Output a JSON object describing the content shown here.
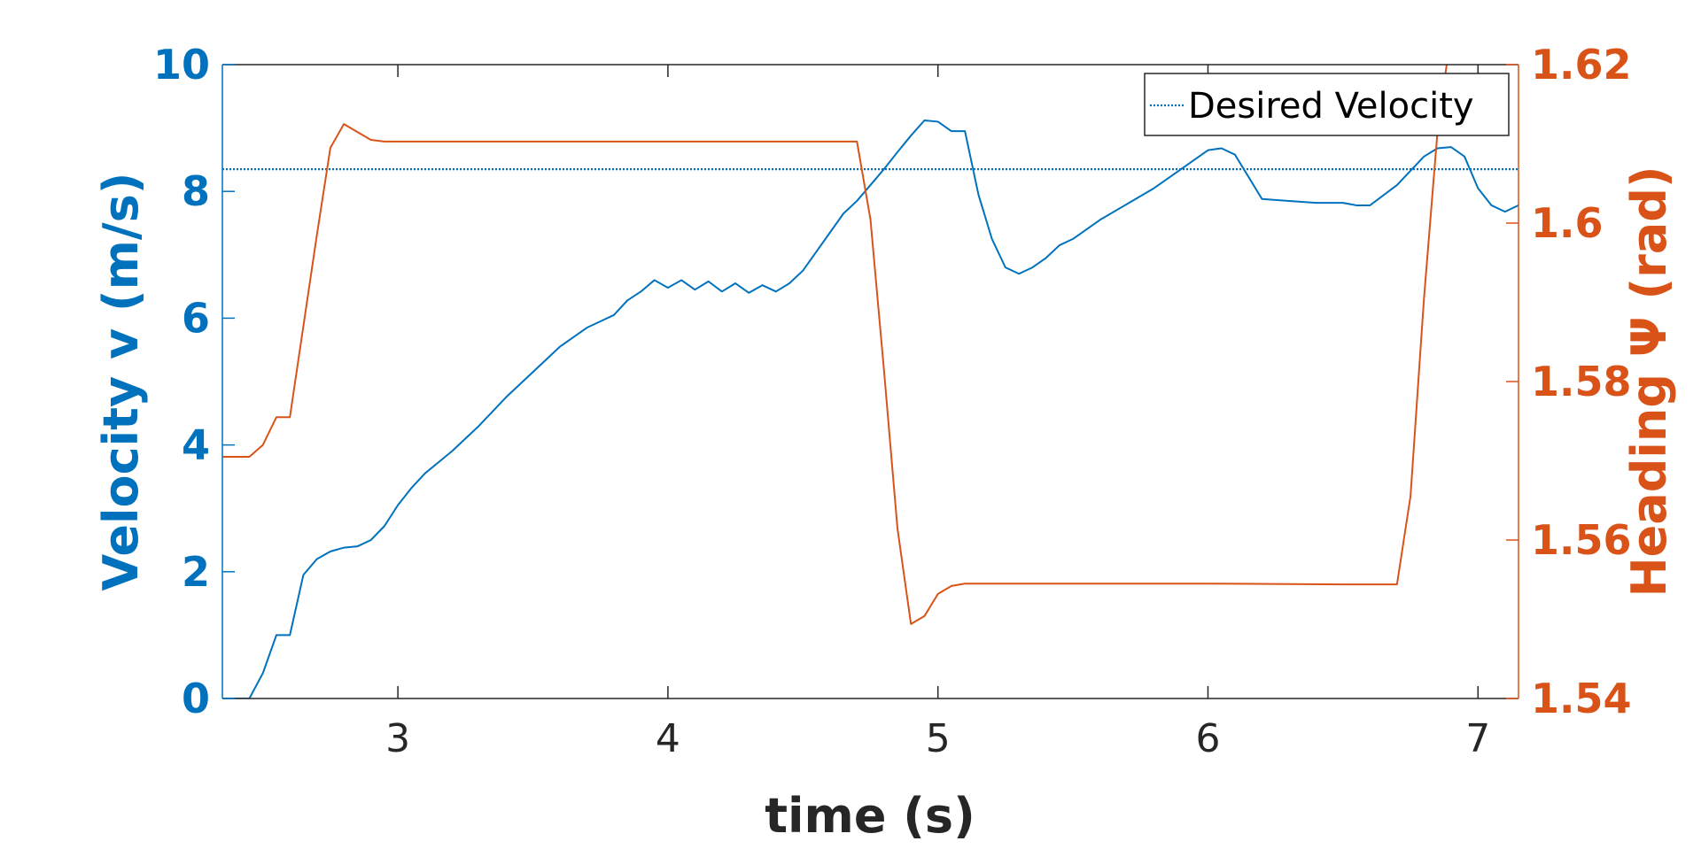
{
  "chart_data": {
    "type": "line",
    "title": "",
    "xlabel": "time (s)",
    "ylabel_left": "Velocity v (m/s)",
    "ylabel_right": "Heading Ψ (rad)",
    "xlim": [
      2.35,
      7.15
    ],
    "ylim_left": [
      0,
      10
    ],
    "ylim_right": [
      1.54,
      1.62
    ],
    "xticks": [
      3,
      4,
      5,
      6,
      7
    ],
    "yticks_left": [
      0,
      2,
      4,
      6,
      8,
      10
    ],
    "yticks_right": [
      1.54,
      1.56,
      1.58,
      1.6,
      1.62
    ],
    "ytick_labels_right": [
      "1.54",
      "1.56",
      "1.58",
      "1.6",
      "1.62"
    ],
    "grid": false,
    "legend_position": "top-right",
    "colors": {
      "velocity": "#0072BD",
      "heading": "#D95319",
      "axis_text": "#262626",
      "axis_line": "#262626"
    },
    "series": [
      {
        "name": "Desired Velocity",
        "axis": "left",
        "style": "dotted",
        "color": "#0072BD",
        "x": [
          2.35,
          7.15
        ],
        "y": [
          8.35,
          8.35
        ]
      },
      {
        "axis": "left",
        "style": "solid",
        "color": "#0072BD",
        "x": [
          2.35,
          2.45,
          2.5,
          2.55,
          2.6,
          2.65,
          2.7,
          2.75,
          2.8,
          2.85,
          2.9,
          2.95,
          3.0,
          3.05,
          3.1,
          3.2,
          3.3,
          3.4,
          3.5,
          3.6,
          3.7,
          3.75,
          3.8,
          3.85,
          3.9,
          3.95,
          4.0,
          4.05,
          4.1,
          4.15,
          4.2,
          4.25,
          4.3,
          4.35,
          4.4,
          4.45,
          4.5,
          4.55,
          4.6,
          4.65,
          4.7,
          4.75,
          4.8,
          4.85,
          4.9,
          4.95,
          5.0,
          5.05,
          5.1,
          5.15,
          5.2,
          5.25,
          5.3,
          5.35,
          5.4,
          5.45,
          5.5,
          5.6,
          5.7,
          5.8,
          5.9,
          6.0,
          6.05,
          6.1,
          6.2,
          6.3,
          6.4,
          6.5,
          6.55,
          6.6,
          6.7,
          6.8,
          6.85,
          6.9,
          6.95,
          7.0,
          7.05,
          7.1,
          7.15
        ],
        "y": [
          0.0,
          0.0,
          0.4,
          1.0,
          1.0,
          1.95,
          2.2,
          2.32,
          2.38,
          2.4,
          2.5,
          2.72,
          3.05,
          3.32,
          3.55,
          3.9,
          4.3,
          4.75,
          5.15,
          5.55,
          5.85,
          5.95,
          6.05,
          6.28,
          6.42,
          6.6,
          6.48,
          6.6,
          6.45,
          6.58,
          6.42,
          6.55,
          6.4,
          6.52,
          6.42,
          6.55,
          6.75,
          7.05,
          7.35,
          7.65,
          7.85,
          8.1,
          8.35,
          8.62,
          8.88,
          9.12,
          9.1,
          8.95,
          8.95,
          7.95,
          7.25,
          6.8,
          6.7,
          6.8,
          6.95,
          7.15,
          7.25,
          7.55,
          7.8,
          8.05,
          8.35,
          8.65,
          8.68,
          8.58,
          7.88,
          7.85,
          7.82,
          7.82,
          7.78,
          7.78,
          8.1,
          8.55,
          8.68,
          8.7,
          8.55,
          8.05,
          7.78,
          7.68,
          7.78
        ]
      },
      {
        "axis": "right",
        "style": "solid",
        "color": "#D95319",
        "x": [
          2.35,
          2.45,
          2.5,
          2.55,
          2.6,
          2.65,
          2.7,
          2.75,
          2.8,
          2.85,
          2.9,
          2.95,
          3.0,
          3.5,
          4.0,
          4.5,
          4.7,
          4.75,
          4.8,
          4.85,
          4.9,
          4.95,
          5.0,
          5.05,
          5.1,
          5.5,
          6.0,
          6.5,
          6.7,
          6.75,
          6.8,
          6.85,
          6.9,
          7.0,
          7.1,
          7.15
        ],
        "y": [
          1.5705,
          1.5705,
          1.572,
          1.5755,
          1.5755,
          1.587,
          1.5985,
          1.6095,
          1.6125,
          1.6115,
          1.6105,
          1.6103,
          1.6103,
          1.6103,
          1.6103,
          1.6103,
          1.6103,
          1.6005,
          1.5815,
          1.5615,
          1.5494,
          1.5504,
          1.5532,
          1.5542,
          1.5545,
          1.5545,
          1.5545,
          1.5544,
          1.5544,
          1.5655,
          1.5905,
          1.6115,
          1.624,
          1.626,
          1.624,
          1.6227
        ]
      }
    ]
  }
}
